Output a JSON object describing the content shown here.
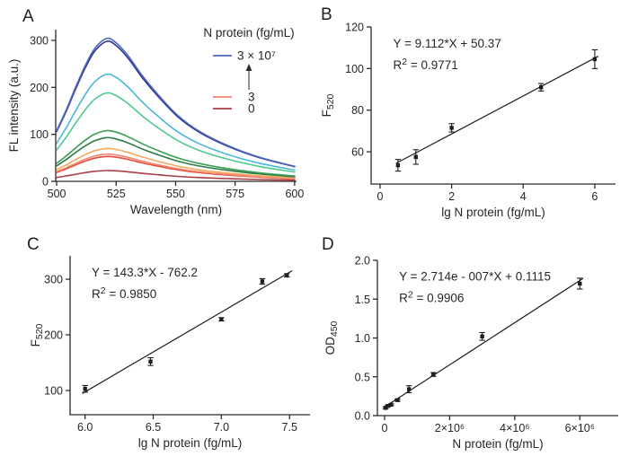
{
  "chart_data": [
    {
      "label": "A",
      "type": "line",
      "xlabel": "Wavelength (nm)",
      "ylabel": "FL intensity (a.u.)",
      "xlim": [
        499.6,
        600.8
      ],
      "ylim": [
        0,
        323
      ],
      "xticks": [
        500,
        525,
        550,
        575,
        600
      ],
      "yticks": [
        0,
        100,
        200,
        300
      ],
      "legend": {
        "title": "N protein (fg/mL)",
        "top": {
          "label": "3 × 10⁷",
          "color": "#4d66c0"
        },
        "arrow": "up",
        "mid": {
          "label": "3",
          "color": "#f2876f"
        },
        "bottom": {
          "label": "0",
          "color": "#aa3d42"
        }
      },
      "wavelength_samples": [
        500,
        504,
        508,
        512,
        516,
        521,
        525,
        530,
        536,
        543,
        551,
        560,
        572,
        585,
        600
      ],
      "intensity_shape": [
        0.355,
        0.5,
        0.66,
        0.81,
        0.93,
        1.0,
        0.97,
        0.88,
        0.74,
        0.6,
        0.46,
        0.35,
        0.25,
        0.17,
        0.105
      ],
      "series": [
        {
          "concentration": "0",
          "color": "#aa3d42",
          "peak_intensity": 23
        },
        {
          "concentration": "3",
          "color": "#e8483c",
          "peak_intensity": 53
        },
        {
          "concentration": "",
          "color": "#f2876f",
          "peak_intensity": 58
        },
        {
          "concentration": "",
          "color": "#f6a85b",
          "peak_intensity": 70
        },
        {
          "concentration": "",
          "color": "#2d7a43",
          "peak_intensity": 93
        },
        {
          "concentration": "",
          "color": "#3a9b53",
          "peak_intensity": 108
        },
        {
          "concentration": "",
          "color": "#4fc98f",
          "peak_intensity": 188
        },
        {
          "concentration": "",
          "color": "#49b8d8",
          "peak_intensity": 228
        },
        {
          "concentration": "",
          "color": "#2a3590",
          "peak_intensity": 298
        },
        {
          "concentration": "3 × 10⁷",
          "color": "#4d66c0",
          "peak_intensity": 304
        }
      ]
    },
    {
      "label": "B",
      "type": "scatter",
      "equation": "Y = 9.112*X + 50.37",
      "r_squared": "0.9771",
      "xlabel": "lg N protein (fg/mL)",
      "ylabel": "F",
      "ylabel_sub": "520",
      "xlim": [
        -0.25,
        6.58
      ],
      "ylim": [
        44.5,
        120
      ],
      "xticks": [
        0,
        2,
        4,
        6
      ],
      "yticks": [
        60,
        80,
        100,
        120
      ],
      "points": [
        {
          "x": 0.5,
          "y": 53.5,
          "err": 2.8
        },
        {
          "x": 1.0,
          "y": 57.5,
          "err": 3.5
        },
        {
          "x": 2.0,
          "y": 71.5,
          "err": 2.0
        },
        {
          "x": 4.5,
          "y": 91.0,
          "err": 1.8
        },
        {
          "x": 6.0,
          "y": 104.5,
          "err": 4.5
        }
      ],
      "fit": {
        "slope": 9.112,
        "intercept": 50.37,
        "x_start": 0.45,
        "x_end": 6.1
      }
    },
    {
      "label": "C",
      "type": "scatter",
      "equation": "Y = 143.3*X - 762.2",
      "r_squared": "0.9850",
      "xlabel": "lg N protein (fg/mL)",
      "ylabel": "F",
      "ylabel_sub": "520",
      "xlim": [
        5.89,
        7.65
      ],
      "ylim": [
        56.5,
        342
      ],
      "xticks": [
        6.0,
        6.5,
        7.0,
        7.5
      ],
      "xtick_labels": [
        "6.0",
        "6.5",
        "7.0",
        "7.5"
      ],
      "yticks": [
        100,
        200,
        300
      ],
      "points": [
        {
          "x": 6.0,
          "y": 103,
          "err": 6
        },
        {
          "x": 6.48,
          "y": 152,
          "err": 7
        },
        {
          "x": 7.0,
          "y": 228,
          "err": 3
        },
        {
          "x": 7.3,
          "y": 296,
          "err": 5
        },
        {
          "x": 7.48,
          "y": 307,
          "err": 3
        }
      ],
      "fit": {
        "slope": 143.3,
        "intercept": -762.2,
        "x_start": 5.98,
        "x_end": 7.52
      }
    },
    {
      "label": "D",
      "type": "scatter",
      "equation": "Y = 2.714e - 007*X + 0.1115",
      "r_squared": "0.9906",
      "xlabel": "N protein (fg/mL)",
      "ylabel": "OD",
      "ylabel_sub": "450",
      "xlim": [
        -220000,
        7180000
      ],
      "ylim": [
        0,
        2.0
      ],
      "xticks": [
        0,
        2000000,
        4000000,
        6000000
      ],
      "xtick_labels": [
        "0",
        "2×10⁶",
        "4×10⁶",
        "6×10⁶"
      ],
      "yticks": [
        0,
        0.5,
        1.0,
        1.5,
        2.0
      ],
      "ytick_labels": [
        "0.0",
        "0.5",
        "1.0",
        "1.5",
        "2.0"
      ],
      "points": [
        {
          "x": 30000,
          "y": 0.1,
          "err": 0.012
        },
        {
          "x": 100000,
          "y": 0.125,
          "err": 0.012
        },
        {
          "x": 200000,
          "y": 0.14,
          "err": 0.012
        },
        {
          "x": 400000,
          "y": 0.2,
          "err": 0.015
        },
        {
          "x": 750000,
          "y": 0.34,
          "err": 0.045
        },
        {
          "x": 1500000,
          "y": 0.53,
          "err": 0.025
        },
        {
          "x": 3000000,
          "y": 1.02,
          "err": 0.05
        },
        {
          "x": 6000000,
          "y": 1.7,
          "err": 0.07
        }
      ],
      "fit": {
        "slope": 2.714e-07,
        "intercept": 0.1115,
        "x_start": 20000,
        "x_end": 6100000
      }
    }
  ]
}
